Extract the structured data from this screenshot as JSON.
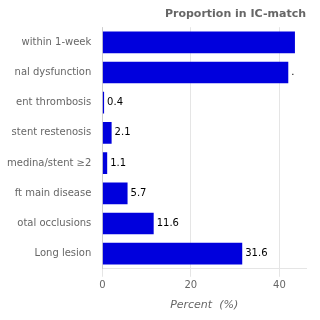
{
  "chart_data": {
    "type": "bar",
    "orientation": "horizontal",
    "title": "Proportion in IC-match",
    "categories": [
      "within 1-week",
      "nal dysfunction",
      "ent thrombosis",
      "stent restenosis",
      "medina/stent ≥2",
      "ft main disease",
      "otal occlusions",
      "Long lesion"
    ],
    "values": [
      43.5,
      42.0,
      0.4,
      2.1,
      1.1,
      5.7,
      11.6,
      31.6
    ],
    "value_labels": [
      null,
      ".",
      "0.4",
      "2.1",
      "1.1",
      "5.7",
      "11.6",
      "31.6"
    ],
    "data_labels": true,
    "color": "#0000dd",
    "xlabel": "Percent  (%)",
    "xlim": [
      0,
      46
    ],
    "xticks": [
      0,
      20,
      40
    ],
    "grid": true
  }
}
